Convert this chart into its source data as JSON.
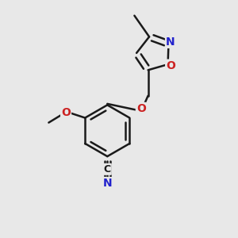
{
  "background_color": "#e8e8e8",
  "bond_color": "#1a1a1a",
  "bond_width": 1.8,
  "atom_colors": {
    "C": "#1a1a1a",
    "N": "#2222cc",
    "O": "#cc2222"
  },
  "font_size": 10,
  "font_weight": "bold"
}
